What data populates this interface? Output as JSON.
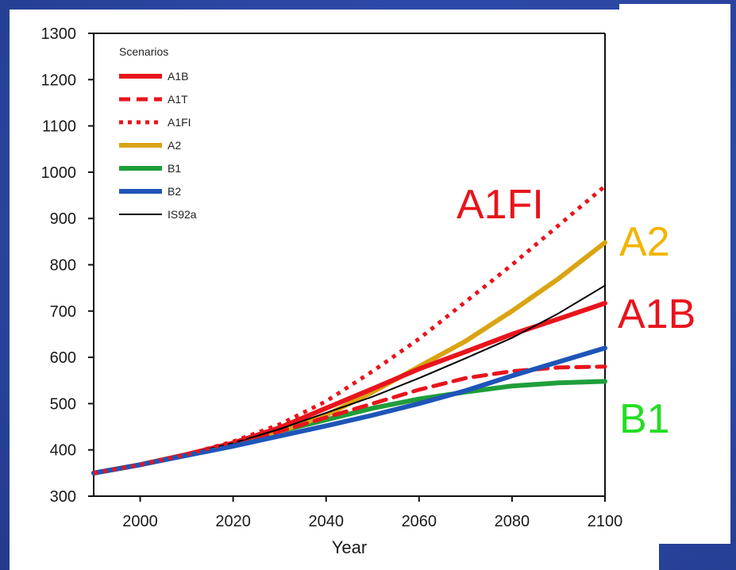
{
  "chart_data": {
    "type": "line",
    "title": "",
    "xlabel": "Year",
    "ylabel": "",
    "xlim": [
      1990,
      2100
    ],
    "ylim": [
      300,
      1300
    ],
    "x_ticks": [
      "2000",
      "2020",
      "2040",
      "2060",
      "2080",
      "2100"
    ],
    "y_ticks": [
      "300",
      "400",
      "500",
      "600",
      "700",
      "800",
      "900",
      "1000",
      "1100",
      "1200",
      "1300"
    ],
    "grid": false,
    "legend": {
      "title": "Scenarios",
      "position": "top-left"
    },
    "series": [
      {
        "name": "A1B",
        "color": "#e8141c",
        "style": "solid-thick",
        "x": [
          1990,
          2000,
          2010,
          2020,
          2030,
          2040,
          2050,
          2060,
          2070,
          2080,
          2090,
          2100
        ],
        "y": [
          350,
          368,
          390,
          415,
          448,
          490,
          532,
          575,
          612,
          650,
          683,
          717
        ]
      },
      {
        "name": "A1T",
        "color": "#e8141c",
        "style": "dashed",
        "x": [
          1990,
          2000,
          2010,
          2020,
          2030,
          2040,
          2050,
          2060,
          2070,
          2080,
          2090,
          2100
        ],
        "y": [
          350,
          368,
          390,
          412,
          440,
          470,
          500,
          530,
          555,
          570,
          578,
          580
        ]
      },
      {
        "name": "A1FI",
        "color": "#e8141c",
        "style": "dotted",
        "x": [
          1990,
          2000,
          2010,
          2020,
          2030,
          2040,
          2050,
          2060,
          2070,
          2080,
          2090,
          2100
        ],
        "y": [
          350,
          368,
          390,
          418,
          455,
          505,
          570,
          640,
          720,
          800,
          885,
          970
        ]
      },
      {
        "name": "A2",
        "color": "#d9a412",
        "style": "solid-thick",
        "x": [
          1990,
          2000,
          2010,
          2020,
          2030,
          2040,
          2050,
          2060,
          2070,
          2080,
          2090,
          2100
        ],
        "y": [
          350,
          368,
          390,
          412,
          440,
          475,
          525,
          580,
          635,
          700,
          770,
          848
        ]
      },
      {
        "name": "B1",
        "color": "#1f9e3a",
        "style": "solid-thick",
        "x": [
          1990,
          2000,
          2010,
          2020,
          2030,
          2040,
          2050,
          2060,
          2070,
          2080,
          2090,
          2100
        ],
        "y": [
          350,
          368,
          390,
          412,
          440,
          465,
          490,
          510,
          525,
          538,
          545,
          548
        ]
      },
      {
        "name": "B2",
        "color": "#1e55b8",
        "style": "solid-thick",
        "x": [
          1990,
          2000,
          2010,
          2020,
          2030,
          2040,
          2050,
          2060,
          2070,
          2080,
          2090,
          2100
        ],
        "y": [
          350,
          368,
          388,
          408,
          430,
          452,
          475,
          500,
          528,
          560,
          590,
          620
        ]
      },
      {
        "name": "IS92a",
        "color": "#000000",
        "style": "solid-thin",
        "x": [
          1990,
          2000,
          2010,
          2020,
          2030,
          2040,
          2050,
          2060,
          2070,
          2080,
          2090,
          2100
        ],
        "y": [
          350,
          368,
          390,
          415,
          445,
          480,
          515,
          555,
          598,
          642,
          695,
          755
        ]
      }
    ],
    "annotations": [
      {
        "text": "A1FI",
        "color": "#e8141c"
      },
      {
        "text": "A2",
        "color": "#f2b400"
      },
      {
        "text": "A1B",
        "color": "#e8141c"
      },
      {
        "text": "B1",
        "color": "#22dd22"
      }
    ]
  }
}
